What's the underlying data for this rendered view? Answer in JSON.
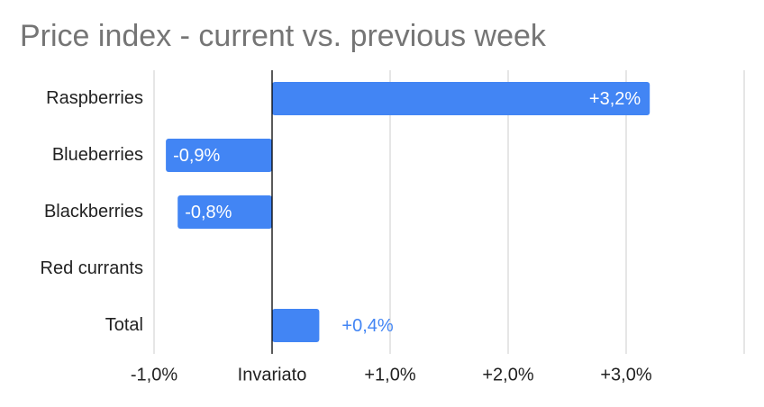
{
  "chart_data": {
    "type": "hbar",
    "title": "Price index - current vs. previous week",
    "categories": [
      "Raspberries",
      "Blueberries",
      "Blackberries",
      "Red currants",
      "Total"
    ],
    "values": [
      3.2,
      -0.9,
      -0.8,
      0,
      0.4
    ],
    "value_labels": [
      "+3,2%",
      "-0,9%",
      "-0,8%",
      null,
      "+0,4%"
    ],
    "color": "#4285f4",
    "xlim": [
      -1,
      4
    ],
    "xticks": [
      {
        "value": -1,
        "label": "-1,0%"
      },
      {
        "value": 0,
        "label": "Invariato"
      },
      {
        "value": 1,
        "label": "+1,0%"
      },
      {
        "value": 2,
        "label": "+2,0%"
      },
      {
        "value": 3,
        "label": "+3,0%"
      },
      {
        "value": 4,
        "label": null
      }
    ],
    "grid": true
  }
}
